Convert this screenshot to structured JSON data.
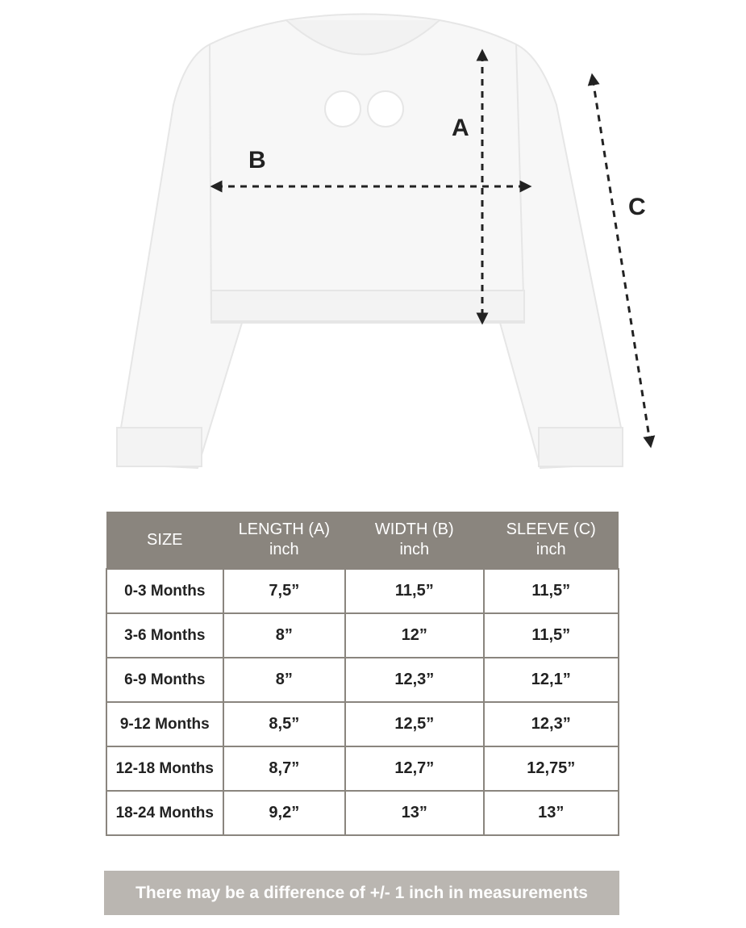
{
  "diagram": {
    "labels": {
      "a": "A",
      "b": "B",
      "c": "C"
    },
    "garment_color": "#f7f7f7",
    "arrow_color": "#222222"
  },
  "table": {
    "headers": [
      {
        "title": "SIZE",
        "unit": ""
      },
      {
        "title": "LENGTH (A)",
        "unit": "inch"
      },
      {
        "title": "WIDTH (B)",
        "unit": "inch"
      },
      {
        "title": "SLEEVE (C)",
        "unit": "inch"
      }
    ],
    "rows": [
      [
        "0-3 Months",
        "7,5”",
        "11,5”",
        "11,5”"
      ],
      [
        "3-6 Months",
        "8”",
        "12”",
        "11,5”"
      ],
      [
        "6-9 Months",
        "8”",
        "12,3”",
        "12,1”"
      ],
      [
        "9-12 Months",
        "8,5”",
        "12,5”",
        "12,3”"
      ],
      [
        "12-18 Months",
        "8,7”",
        "12,7”",
        "12,75”"
      ],
      [
        "18-24 Months",
        "9,2”",
        "13”",
        "13”"
      ]
    ],
    "header_color": "#8a857e"
  },
  "note": {
    "text": "There may be a difference of +/- 1 inch in measurements",
    "color": "#bab6b1"
  }
}
